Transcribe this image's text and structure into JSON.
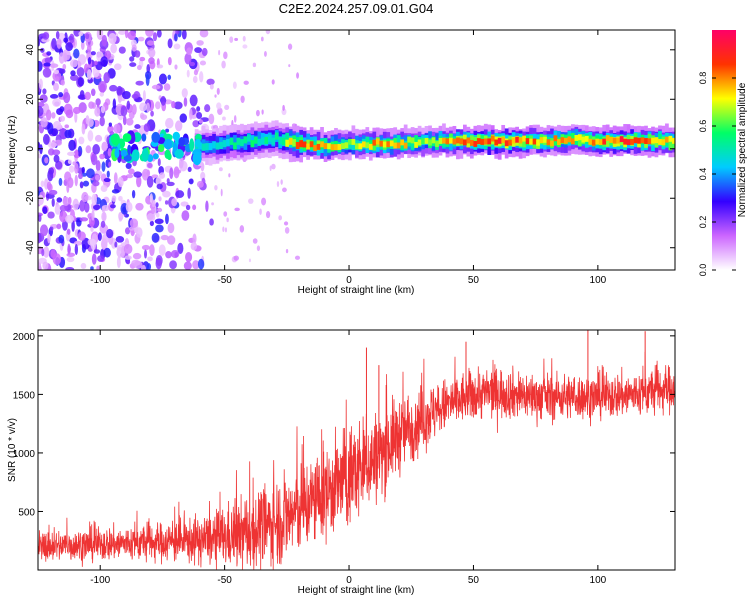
{
  "title": "C2E2.2024.257.09.01.G04",
  "chart_data": [
    {
      "type": "heatmap",
      "xlabel": "Height of straight line (km)",
      "ylabel": "Frequency (Hz)",
      "xlim": [
        -125,
        131
      ],
      "ylim": [
        -49,
        48
      ],
      "xticks": [
        -100,
        -50,
        0,
        50,
        100
      ],
      "yticks": [
        -40,
        -20,
        0,
        20,
        40
      ],
      "colorbar": {
        "label": "Normalized spectral amplitude",
        "range": [
          0,
          1
        ],
        "ticks": [
          0.0,
          0.2,
          0.4,
          0.6,
          0.8
        ],
        "tick_labels": [
          "0.0",
          "0.2",
          "0.4",
          "0.6",
          "0.8"
        ],
        "colors": [
          "#ffffff",
          "#cc66ff",
          "#3300ff",
          "#00ccff",
          "#00ff66",
          "#ffff00",
          "#ff3300",
          "#ff0066"
        ]
      },
      "band": {
        "description_points_height_km": [
          -62,
          -50,
          -40,
          -30,
          -20,
          -10,
          0,
          10,
          20,
          30,
          40,
          50,
          60,
          70,
          80,
          90,
          100,
          110,
          120,
          131
        ],
        "center_freq_hz": [
          1,
          2,
          3,
          4,
          2,
          1,
          2,
          2,
          2,
          3,
          3,
          3,
          3,
          3,
          3,
          4,
          3,
          3,
          3,
          3
        ],
        "peak_amplitude": [
          0.5,
          0.55,
          0.6,
          0.55,
          0.9,
          0.85,
          0.7,
          0.85,
          0.8,
          0.7,
          0.85,
          0.95,
          0.95,
          0.9,
          0.85,
          0.8,
          0.9,
          0.95,
          0.9,
          0.85
        ]
      },
      "noise_region_km": [
        -125,
        -60
      ]
    },
    {
      "type": "line",
      "xlabel": "Height of straight line (km)",
      "ylabel": "SNR (10 * v/v)",
      "xlim": [
        -125,
        131
      ],
      "ylim": [
        0,
        2050
      ],
      "xticks": [
        -100,
        -50,
        0,
        50,
        100
      ],
      "yticks": [
        500,
        1000,
        1500,
        2000
      ],
      "color": "#ee3333",
      "trend_x": [
        -125,
        -100,
        -75,
        -55,
        -40,
        -25,
        -10,
        0,
        10,
        20,
        30,
        40,
        50,
        60,
        75,
        100,
        115,
        131
      ],
      "trend_y": [
        200,
        220,
        240,
        260,
        320,
        450,
        650,
        800,
        950,
        1150,
        1300,
        1420,
        1500,
        1520,
        1480,
        1480,
        1500,
        1560
      ],
      "spread": [
        120,
        130,
        150,
        200,
        300,
        350,
        350,
        400,
        350,
        300,
        250,
        200,
        200,
        200,
        180,
        170,
        180,
        180
      ],
      "max_spikes": [
        {
          "x": 96,
          "y": 2050
        },
        {
          "x": 119,
          "y": 2040
        },
        {
          "x": 7,
          "y": 1900
        },
        {
          "x": 12,
          "y": 1750
        },
        {
          "x": 47,
          "y": 1950
        }
      ]
    }
  ]
}
